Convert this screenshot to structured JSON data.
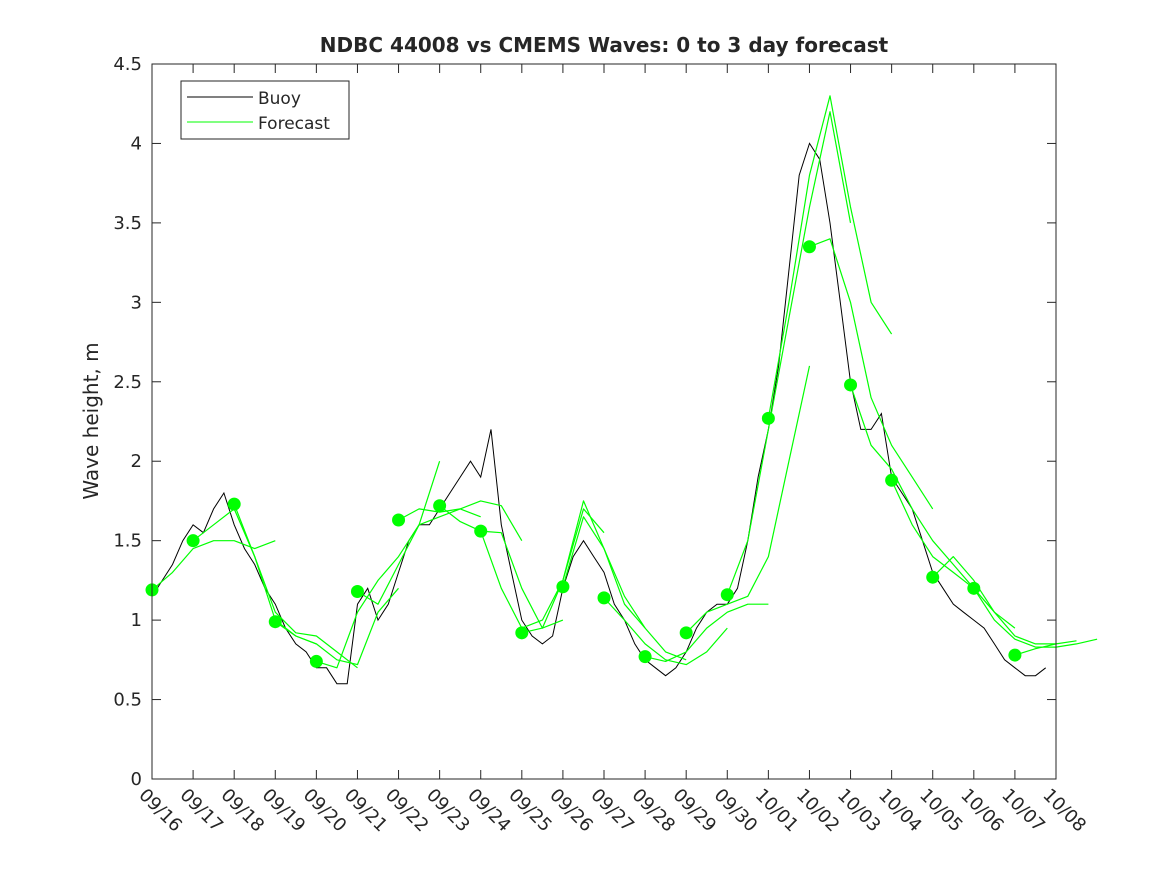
{
  "chart_data": {
    "type": "line",
    "title": "NDBC 44008 vs CMEMS Waves: 0 to 3 day forecast",
    "xlabel": "",
    "ylabel": "Wave height, m",
    "ylim": [
      0,
      4.5
    ],
    "yticks": [
      "0",
      "0.5",
      "1",
      "1.5",
      "2",
      "2.5",
      "3",
      "3.5",
      "4",
      "4.5"
    ],
    "xticks": [
      "09/16",
      "09/17",
      "09/18",
      "09/19",
      "09/20",
      "09/21",
      "09/22",
      "09/23",
      "09/24",
      "09/25",
      "09/26",
      "09/27",
      "09/28",
      "09/29",
      "09/30",
      "10/01",
      "10/02",
      "10/03",
      "10/04",
      "10/05",
      "10/06",
      "10/07",
      "10/08"
    ],
    "xlim_days": [
      0,
      22
    ],
    "legend": {
      "placement": "top-left",
      "entries": [
        {
          "label": "Buoy",
          "color": "#000000"
        },
        {
          "label": "Forecast",
          "color": "#00ff00"
        }
      ]
    },
    "colors": {
      "buoy": "#000000",
      "forecast": "#00ff00"
    },
    "buoy": {
      "x_days": [
        0,
        0.25,
        0.5,
        0.75,
        1,
        1.25,
        1.5,
        1.75,
        2,
        2.25,
        2.5,
        2.75,
        3,
        3.25,
        3.5,
        3.75,
        4,
        4.25,
        4.5,
        4.75,
        5,
        5.25,
        5.5,
        5.75,
        6,
        6.25,
        6.5,
        6.75,
        7,
        7.25,
        7.5,
        7.75,
        8,
        8.25,
        8.5,
        8.75,
        9,
        9.25,
        9.5,
        9.75,
        10,
        10.25,
        10.5,
        10.75,
        11,
        11.25,
        11.5,
        11.75,
        12,
        12.25,
        12.5,
        12.75,
        13,
        13.25,
        13.5,
        13.75,
        14,
        14.25,
        14.5,
        14.75,
        15,
        15.25,
        15.5,
        15.75,
        16,
        16.25,
        16.5,
        16.75,
        17,
        17.25,
        17.5,
        17.75,
        18,
        18.25,
        18.5,
        18.75,
        19,
        19.25,
        19.5,
        19.75,
        20,
        20.25,
        20.5,
        20.75,
        21,
        21.25,
        21.5,
        21.75
      ],
      "y": [
        1.15,
        1.25,
        1.35,
        1.5,
        1.6,
        1.55,
        1.7,
        1.8,
        1.6,
        1.45,
        1.35,
        1.2,
        1.1,
        0.95,
        0.85,
        0.8,
        0.7,
        0.7,
        0.6,
        0.6,
        1.1,
        1.2,
        1.0,
        1.1,
        1.3,
        1.5,
        1.6,
        1.6,
        1.7,
        1.8,
        1.9,
        2.0,
        1.9,
        2.2,
        1.6,
        1.3,
        1.0,
        0.9,
        0.85,
        0.9,
        1.2,
        1.4,
        1.5,
        1.4,
        1.3,
        1.1,
        1.0,
        0.85,
        0.75,
        0.7,
        0.65,
        0.7,
        0.8,
        0.95,
        1.05,
        1.1,
        1.1,
        1.2,
        1.5,
        1.9,
        2.2,
        2.6,
        3.2,
        3.8,
        4.0,
        3.9,
        3.5,
        3.0,
        2.5,
        2.2,
        2.2,
        2.3,
        1.9,
        1.8,
        1.7,
        1.5,
        1.3,
        1.2,
        1.1,
        1.05,
        1.0,
        0.95,
        0.85,
        0.75,
        0.7,
        0.65,
        0.65,
        0.7
      ]
    },
    "forecast_runs": [
      {
        "start_day": 0,
        "y": [
          1.19,
          1.3,
          1.45,
          1.5,
          1.5,
          1.45,
          1.5
        ]
      },
      {
        "start_day": 1,
        "y": [
          1.5,
          1.6,
          1.7,
          1.4,
          1.0,
          0.9,
          0.85
        ]
      },
      {
        "start_day": 2,
        "y": [
          1.73,
          1.4,
          1.05,
          0.92,
          0.9,
          0.8,
          0.7
        ]
      },
      {
        "start_day": 3,
        "y": [
          0.99,
          0.9,
          0.85,
          0.75,
          0.72,
          1.05,
          1.2
        ]
      },
      {
        "start_day": 4,
        "y": [
          0.74,
          0.7,
          1.05,
          1.25,
          1.4,
          1.6,
          2.0
        ]
      },
      {
        "start_day": 5,
        "y": [
          1.18,
          1.1,
          1.35,
          1.6,
          1.65,
          1.7,
          1.65
        ]
      },
      {
        "start_day": 6,
        "y": [
          1.63,
          1.7,
          1.68,
          1.7,
          1.75,
          1.72,
          1.5
        ]
      },
      {
        "start_day": 7,
        "y": [
          1.72,
          1.62,
          1.56,
          1.55,
          1.2,
          0.95,
          1.0
        ]
      },
      {
        "start_day": 8,
        "y": [
          1.56,
          1.2,
          0.95,
          1.0,
          1.25,
          1.7,
          1.55
        ]
      },
      {
        "start_day": 9,
        "y": [
          0.92,
          0.95,
          1.25,
          1.75,
          1.45,
          1.15,
          0.95
        ]
      },
      {
        "start_day": 10,
        "y": [
          1.21,
          1.65,
          1.45,
          1.1,
          0.95,
          0.8,
          0.75
        ]
      },
      {
        "start_day": 11,
        "y": [
          1.14,
          1.0,
          0.85,
          0.75,
          0.72,
          0.8,
          0.95
        ]
      },
      {
        "start_day": 12,
        "y": [
          0.77,
          0.74,
          0.8,
          0.95,
          1.05,
          1.1,
          1.1
        ]
      },
      {
        "start_day": 13,
        "y": [
          0.92,
          1.05,
          1.1,
          1.15,
          1.4,
          2.0,
          2.6
        ]
      },
      {
        "start_day": 14,
        "y": [
          1.16,
          1.5,
          2.2,
          2.9,
          3.6,
          4.2,
          3.5
        ]
      },
      {
        "start_day": 15,
        "y": [
          2.27,
          3.0,
          3.8,
          4.3,
          3.6,
          3.0,
          2.8
        ]
      },
      {
        "start_day": 16,
        "y": [
          3.35,
          3.4,
          3.0,
          2.4,
          2.1,
          1.9,
          1.7
        ]
      },
      {
        "start_day": 17,
        "y": [
          2.48,
          2.1,
          1.95,
          1.7,
          1.5,
          1.35,
          1.2
        ]
      },
      {
        "start_day": 18,
        "y": [
          1.88,
          1.6,
          1.4,
          1.3,
          1.2,
          1.05,
          0.95
        ]
      },
      {
        "start_day": 19,
        "y": [
          1.27,
          1.4,
          1.25,
          1.05,
          0.9,
          0.85,
          0.85
        ]
      },
      {
        "start_day": 20,
        "y": [
          1.2,
          1.0,
          0.88,
          0.83,
          0.83,
          0.85,
          0.88
        ]
      },
      {
        "start_day": 21,
        "y": [
          0.78,
          0.82,
          0.85,
          0.87
        ]
      }
    ],
    "forecast_step_days": 0.5,
    "markers": {
      "x_days": [
        0,
        1,
        2,
        3,
        4,
        5,
        6,
        7,
        8,
        9,
        10,
        11,
        12,
        13,
        14,
        15,
        16,
        17,
        18,
        19,
        20,
        21
      ],
      "y": [
        1.19,
        1.5,
        1.73,
        0.99,
        0.74,
        1.18,
        1.63,
        1.72,
        1.56,
        0.92,
        1.21,
        1.14,
        0.77,
        0.92,
        1.16,
        2.27,
        3.35,
        2.48,
        1.88,
        1.27,
        1.2,
        0.78
      ]
    }
  }
}
